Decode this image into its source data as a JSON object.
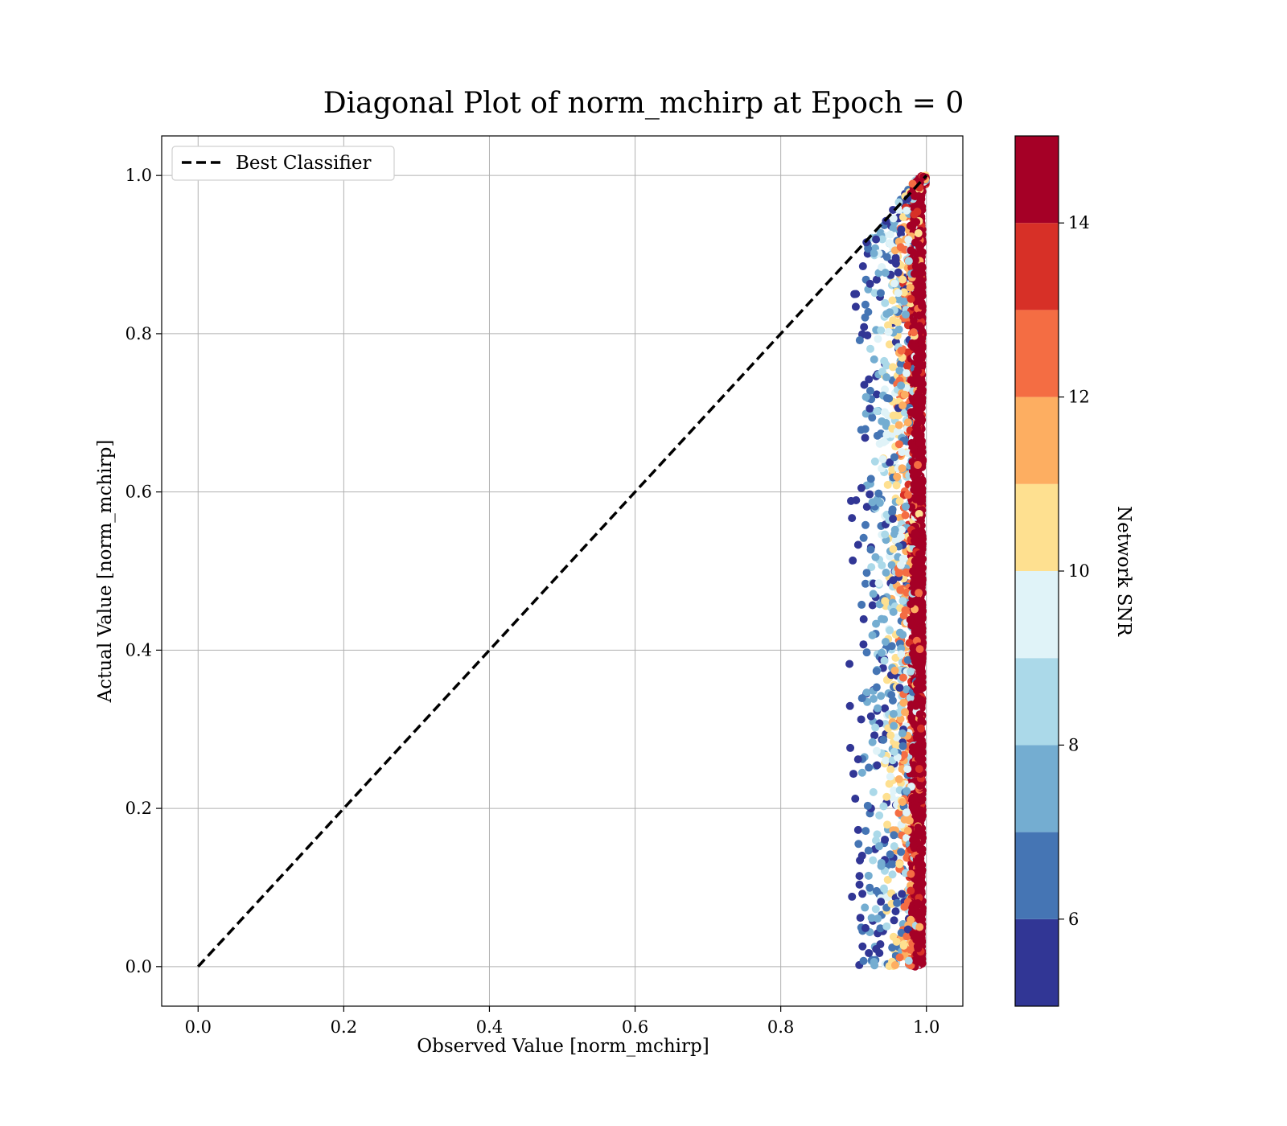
{
  "chart_data": {
    "type": "scatter",
    "title": "Diagonal Plot of norm_mchirp at Epoch = 0",
    "xlabel": "Observed Value [norm_mchirp]",
    "ylabel": "Actual Value [norm_mchirp]",
    "xlim": [
      -0.05,
      1.05
    ],
    "ylim": [
      -0.05,
      1.05
    ],
    "xticks": [
      0.0,
      0.2,
      0.4,
      0.6,
      0.8,
      1.0
    ],
    "yticks": [
      0.0,
      0.2,
      0.4,
      0.6,
      0.8,
      1.0
    ],
    "xtick_labels": [
      "0.0",
      "0.2",
      "0.4",
      "0.6",
      "0.8",
      "1.0"
    ],
    "ytick_labels": [
      "0.0",
      "0.2",
      "0.4",
      "0.6",
      "0.8",
      "1.0"
    ],
    "grid": true,
    "legend": {
      "placement": "upper-left",
      "entries": [
        {
          "label": "Best Classifier",
          "style": "dashed",
          "color": "#000000"
        }
      ]
    },
    "reference_line": {
      "x": [
        0.0,
        1.0
      ],
      "y": [
        0.0,
        1.0
      ]
    },
    "scatter_summary": {
      "x_range": [
        0.9,
        1.0
      ],
      "y_range": [
        0.0,
        1.0
      ],
      "note": "dense cloud of predictions; higher SNR points lie closer to x = 1.0"
    },
    "colorbar": {
      "label": "Network SNR",
      "range": [
        5,
        15
      ],
      "ticks": [
        6,
        8,
        10,
        12,
        14
      ],
      "tick_labels": [
        "6",
        "8",
        "10",
        "12",
        "14"
      ],
      "colors": [
        "#313695",
        "#4575b4",
        "#74add1",
        "#abd9e9",
        "#e0f3f8",
        "#fee090",
        "#fdae61",
        "#f46d43",
        "#d73027",
        "#a50026"
      ]
    }
  }
}
